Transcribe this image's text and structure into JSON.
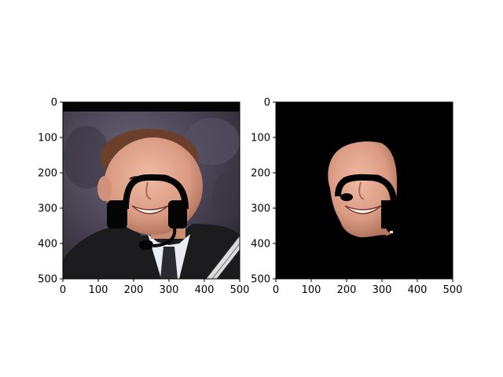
{
  "chart_data": [
    {
      "type": "image",
      "description_key": "original-photo-with-headset-overlay",
      "xlim": [
        0,
        500
      ],
      "ylim": [
        500,
        0
      ],
      "xticks": [
        0,
        100,
        200,
        300,
        400,
        500
      ],
      "yticks": [
        0,
        100,
        200,
        300,
        400,
        500
      ],
      "xtick_labels": [
        "0",
        "100",
        "200",
        "300",
        "400",
        "500"
      ],
      "ytick_labels": [
        "0",
        "100",
        "200",
        "300",
        "400",
        "500"
      ]
    },
    {
      "type": "image",
      "description_key": "segmented-face-mask-on-black",
      "xlim": [
        0,
        500
      ],
      "ylim": [
        500,
        0
      ],
      "xticks": [
        0,
        100,
        200,
        300,
        400,
        500
      ],
      "yticks": [
        0,
        100,
        200,
        300,
        400,
        500
      ],
      "xtick_labels": [
        "0",
        "100",
        "200",
        "300",
        "400",
        "500"
      ],
      "ytick_labels": [
        "0",
        "100",
        "200",
        "300",
        "400",
        "500"
      ]
    }
  ],
  "colors": {
    "background_dark": "#000000",
    "backdrop_purple": "#4b4656",
    "suit": "#1c1c1f",
    "skin": "#e0a48c",
    "hair": "#6b3f2a",
    "shirt": "#e9ecf0"
  }
}
